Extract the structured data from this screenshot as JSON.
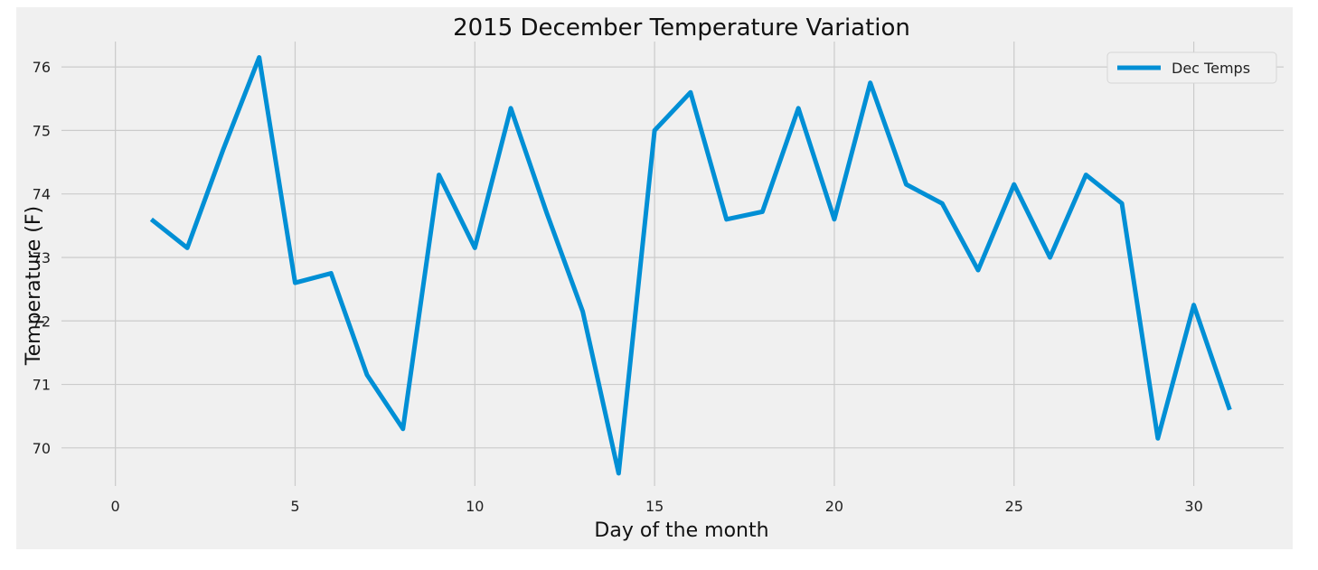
{
  "chart_data": {
    "type": "line",
    "title": "2015 December Temperature Variation",
    "xlabel": "Day of the month",
    "ylabel": "Temperature (F)",
    "xlim": [
      -1.5,
      32.5
    ],
    "ylim": [
      69.4,
      76.4
    ],
    "xticks": [
      0,
      5,
      10,
      15,
      20,
      25,
      30
    ],
    "yticks": [
      70,
      71,
      72,
      73,
      74,
      75,
      76
    ],
    "grid": true,
    "legend_position": "top-right",
    "background_color": "#f0f0f0",
    "line_color": "#008fd5",
    "x": [
      1,
      2,
      3,
      4,
      5,
      6,
      7,
      8,
      9,
      10,
      11,
      12,
      13,
      14,
      15,
      16,
      17,
      18,
      19,
      20,
      21,
      22,
      23,
      24,
      25,
      26,
      27,
      28,
      29,
      30,
      31
    ],
    "series": [
      {
        "name": "Dec Temps",
        "values": [
          73.6,
          73.15,
          74.7,
          76.15,
          72.6,
          72.75,
          71.15,
          70.3,
          74.3,
          73.15,
          75.35,
          73.7,
          72.15,
          69.6,
          75.0,
          75.6,
          73.6,
          73.72,
          75.35,
          73.6,
          75.75,
          74.15,
          73.85,
          72.8,
          74.15,
          73.0,
          74.3,
          73.85,
          70.15,
          72.25,
          70.6
        ]
      }
    ]
  }
}
